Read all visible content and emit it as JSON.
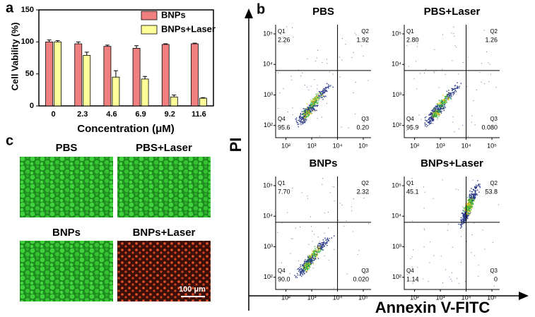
{
  "panel_labels": [
    "a",
    "b",
    "c"
  ],
  "chart_data": [
    {
      "type": "bar",
      "ylabel": "Cell Vability (%)",
      "xlabel": "Concentration (μM)",
      "categories": [
        "0",
        "2.3",
        "4.6",
        "6.9",
        "9.2",
        "11.6"
      ],
      "series": [
        {
          "name": "BNPs",
          "color": "#f08080",
          "values": [
            100,
            97,
            93,
            90,
            96,
            97
          ],
          "errors": [
            3,
            3,
            2,
            4,
            1,
            1
          ]
        },
        {
          "name": "BNPs+Laser",
          "color": "#ffff99",
          "values": [
            100,
            79,
            45,
            42,
            14,
            12
          ],
          "errors": [
            2,
            5,
            10,
            4,
            3,
            1
          ]
        }
      ],
      "ylim": [
        0,
        150
      ],
      "yticks": [
        0,
        50,
        100,
        150
      ],
      "legend": "upper right"
    },
    {
      "type": "flow",
      "title": "PBS",
      "xlim": [
        1.6,
        5.3
      ],
      "ylim": [
        1.6,
        5.3
      ],
      "gates": {
        "x": 4,
        "y": 3.8
      },
      "xticks": [
        {
          "value": 2,
          "label": "10²"
        },
        {
          "value": 3,
          "label": "10³"
        },
        {
          "value": 4,
          "label": "10⁴"
        },
        {
          "value": 5,
          "label": "10⁵"
        }
      ],
      "yticks": [
        {
          "value": 2,
          "label": "10²"
        },
        {
          "value": 3,
          "label": "10³"
        },
        {
          "value": 4,
          "label": "10⁴"
        },
        {
          "value": 5,
          "label": "10⁵"
        }
      ],
      "quadrants": [
        {
          "name": "Q1",
          "text": "2.26"
        },
        {
          "name": "Q2",
          "text": "1.92"
        },
        {
          "name": "Q3",
          "text": "0.20"
        },
        {
          "name": "Q4",
          "text": "95.6"
        }
      ]
    },
    {
      "type": "flow",
      "title": "PBS+Laser",
      "xlim": [
        1.6,
        5.3
      ],
      "ylim": [
        1.6,
        5.3
      ],
      "gates": {
        "x": 4,
        "y": 3.8
      },
      "xticks": [
        {
          "value": 2,
          "label": "10²"
        },
        {
          "value": 3,
          "label": "10³"
        },
        {
          "value": 4,
          "label": "10⁴"
        },
        {
          "value": 5,
          "label": "10⁵"
        }
      ],
      "yticks": [
        {
          "value": 2,
          "label": "10²"
        },
        {
          "value": 3,
          "label": "10³"
        },
        {
          "value": 4,
          "label": "10⁴"
        },
        {
          "value": 5,
          "label": "10⁵"
        }
      ],
      "quadrants": [
        {
          "name": "Q1",
          "text": "2.80"
        },
        {
          "name": "Q2",
          "text": "1.26"
        },
        {
          "name": "Q3",
          "text": "0.080"
        },
        {
          "name": "Q4",
          "text": "95.9"
        }
      ]
    },
    {
      "type": "flow",
      "title": "BNPs",
      "xlim": [
        1.6,
        5.3
      ],
      "ylim": [
        1.6,
        5.3
      ],
      "gates": {
        "x": 4,
        "y": 3.8
      },
      "xticks": [
        {
          "value": 2,
          "label": "10²"
        },
        {
          "value": 3,
          "label": "10³"
        },
        {
          "value": 4,
          "label": "10⁴"
        },
        {
          "value": 5,
          "label": "10⁵"
        }
      ],
      "yticks": [
        {
          "value": 2,
          "label": "10²"
        },
        {
          "value": 3,
          "label": "10³"
        },
        {
          "value": 4,
          "label": "10⁴"
        },
        {
          "value": 5,
          "label": "10⁵"
        }
      ],
      "quadrants": [
        {
          "name": "Q1",
          "text": "7.70"
        },
        {
          "name": "Q2",
          "text": "2.32"
        },
        {
          "name": "Q3",
          "text": "0.020"
        },
        {
          "name": "Q4",
          "text": "90.0"
        }
      ]
    },
    {
      "type": "flow",
      "title": "BNPs+Laser",
      "xlim": [
        1.6,
        5.3
      ],
      "ylim": [
        1.6,
        5.3
      ],
      "gates": {
        "x": 4,
        "y": 3.8
      },
      "xticks": [
        {
          "value": 2,
          "label": "10²"
        },
        {
          "value": 3,
          "label": "10³"
        },
        {
          "value": 4,
          "label": "10⁴"
        },
        {
          "value": 5,
          "label": "10⁵"
        }
      ],
      "yticks": [
        {
          "value": 2,
          "label": "10²"
        },
        {
          "value": 3,
          "label": "10³"
        },
        {
          "value": 4,
          "label": "10⁴"
        },
        {
          "value": 5,
          "label": "10⁵"
        }
      ],
      "quadrants": [
        {
          "name": "Q1",
          "text": "45.1"
        },
        {
          "name": "Q2",
          "text": "53.8"
        },
        {
          "name": "Q3",
          "text": "0"
        },
        {
          "name": "Q4",
          "text": "1.14"
        }
      ]
    }
  ],
  "flow_axes": {
    "ylabel": "PI",
    "xlabel": "Annexin V-FITC"
  },
  "images": [
    {
      "title": "PBS"
    },
    {
      "title": "PBS+Laser"
    },
    {
      "title": "BNPs"
    },
    {
      "title": "BNPs+Laser",
      "scale_bar": "100 μm"
    }
  ]
}
